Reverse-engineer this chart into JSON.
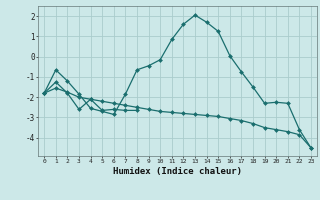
{
  "xlabel": "Humidex (Indice chaleur)",
  "background_color": "#cce8e8",
  "grid_color": "#aacccc",
  "line_color": "#1a6e6e",
  "xlim": [
    -0.5,
    23.5
  ],
  "ylim": [
    -4.9,
    2.5
  ],
  "yticks": [
    -4,
    -3,
    -2,
    -1,
    0,
    1,
    2
  ],
  "xticks": [
    0,
    1,
    2,
    3,
    4,
    5,
    6,
    7,
    8,
    9,
    10,
    11,
    12,
    13,
    14,
    15,
    16,
    17,
    18,
    19,
    20,
    21,
    22,
    23
  ],
  "line1_x": [
    0,
    1,
    2,
    3,
    4,
    5,
    6,
    7,
    8,
    9,
    10,
    11,
    12,
    13,
    14,
    15,
    16,
    17,
    18,
    19,
    20,
    21,
    22,
    23
  ],
  "line1_y": [
    -1.8,
    -0.65,
    -1.2,
    -1.85,
    -2.55,
    -2.7,
    -2.85,
    -1.85,
    -0.65,
    -0.45,
    -0.15,
    0.85,
    1.6,
    2.05,
    1.7,
    1.25,
    0.05,
    -0.75,
    -1.5,
    -2.3,
    -2.25,
    -2.3,
    -3.6,
    -4.5
  ],
  "line2_x": [
    0,
    1,
    2,
    3,
    4,
    5,
    6,
    7,
    8
  ],
  "line2_y": [
    -1.8,
    -1.25,
    -1.8,
    -2.6,
    -2.1,
    -2.65,
    -2.6,
    -2.65,
    -2.65
  ],
  "line3_x": [
    0,
    1,
    2,
    3,
    4,
    5,
    6,
    7,
    8,
    9,
    10,
    11,
    12,
    13,
    14,
    15,
    16,
    17,
    18,
    19,
    20,
    21,
    22,
    23
  ],
  "line3_y": [
    -1.8,
    -1.55,
    -1.75,
    -2.0,
    -2.1,
    -2.2,
    -2.3,
    -2.4,
    -2.5,
    -2.6,
    -2.7,
    -2.75,
    -2.8,
    -2.85,
    -2.9,
    -2.95,
    -3.05,
    -3.15,
    -3.3,
    -3.5,
    -3.6,
    -3.7,
    -3.85,
    -4.5
  ]
}
